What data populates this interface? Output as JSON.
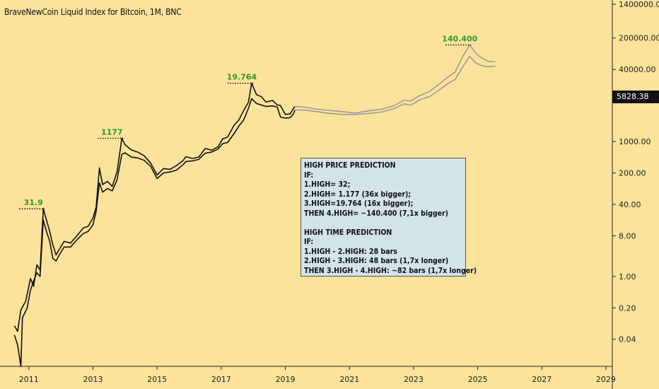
{
  "title": "BraveNewCoin Liquid Index for Bitcoin, 1M, BNC",
  "current_price_label": "5828.38",
  "note": {
    "lines1": [
      "HIGH PRICE PREDICTION",
      "IF:",
      "1.HIGH= 32;",
      "2.HIGH= 1.177 (36x bigger);",
      "3.HIGH=19.764 (16x bigger);",
      "THEN 4.HIGH= ~140.400 (7,1x bigger)"
    ],
    "lines2": [
      "HIGH TIME PREDICTION",
      "IF:",
      "1.HIGH - 2.HIGH: 28 bars",
      "2.HIGH - 3.HIGH: 48 bars (1,7x longer)",
      "THEN 3.HIGH - 4.HIGH: ~82 bars (1,7x longer)"
    ]
  },
  "colors": {
    "background": "#fce39b",
    "price_line": "#111111",
    "projection_line": "#9a9a9a",
    "peak_label": "#2e9a2e",
    "note_bg": "#d3e3ea"
  },
  "chart_data": {
    "type": "line",
    "title": "BraveNewCoin Liquid Index for Bitcoin, 1M, BNC",
    "y_scale": "log",
    "ylim": [
      0.01,
      1400000
    ],
    "xlim": [
      2010.1,
      2029.2
    ],
    "x_ticks": [
      "2011",
      "2013",
      "2015",
      "2017",
      "2019",
      "2021",
      "2023",
      "2025",
      "2027",
      "2029"
    ],
    "y_ticks": [
      "1400000.00",
      "200000.00",
      "40000.00",
      "5828.38",
      "1000.00",
      "200.00",
      "40.00",
      "8.00",
      "1.00",
      "0.20",
      "0.04"
    ],
    "peak_labels": [
      {
        "text": "31.9",
        "x": 2011.45,
        "y": 31.9
      },
      {
        "text": "1177",
        "x": 2013.9,
        "y": 1177
      },
      {
        "text": "19.764",
        "x": 2017.95,
        "y": 19764
      },
      {
        "text": "140.400",
        "x": 2024.75,
        "y": 140400
      }
    ],
    "series": [
      {
        "role": "historical-high",
        "points": [
          [
            2010.55,
            0.08
          ],
          [
            2010.65,
            0.06
          ],
          [
            2010.75,
            0.18
          ],
          [
            2010.9,
            0.28
          ],
          [
            2011.05,
            0.9
          ],
          [
            2011.15,
            0.6
          ],
          [
            2011.25,
            1.8
          ],
          [
            2011.35,
            1.4
          ],
          [
            2011.45,
            31.9
          ],
          [
            2011.55,
            18
          ],
          [
            2011.65,
            10
          ],
          [
            2011.75,
            5
          ],
          [
            2011.85,
            3
          ],
          [
            2011.95,
            4
          ],
          [
            2012.1,
            6
          ],
          [
            2012.3,
            5.5
          ],
          [
            2012.5,
            8
          ],
          [
            2012.7,
            12
          ],
          [
            2012.85,
            13
          ],
          [
            2013.0,
            20
          ],
          [
            2013.1,
            35
          ],
          [
            2013.2,
            260
          ],
          [
            2013.3,
            110
          ],
          [
            2013.45,
            130
          ],
          [
            2013.6,
            100
          ],
          [
            2013.75,
            210
          ],
          [
            2013.9,
            1177
          ],
          [
            2014.0,
            850
          ],
          [
            2014.2,
            650
          ],
          [
            2014.4,
            580
          ],
          [
            2014.6,
            480
          ],
          [
            2014.8,
            330
          ],
          [
            2015.0,
            180
          ],
          [
            2015.2,
            250
          ],
          [
            2015.4,
            240
          ],
          [
            2015.6,
            290
          ],
          [
            2015.8,
            370
          ],
          [
            2015.9,
            460
          ],
          [
            2016.1,
            420
          ],
          [
            2016.3,
            450
          ],
          [
            2016.5,
            700
          ],
          [
            2016.7,
            640
          ],
          [
            2016.9,
            760
          ],
          [
            2017.05,
            1150
          ],
          [
            2017.2,
            1250
          ],
          [
            2017.4,
            2300
          ],
          [
            2017.55,
            3000
          ],
          [
            2017.7,
            4900
          ],
          [
            2017.85,
            7500
          ],
          [
            2017.95,
            19764
          ],
          [
            2018.1,
            11000
          ],
          [
            2018.25,
            9900
          ],
          [
            2018.4,
            7500
          ],
          [
            2018.6,
            8200
          ],
          [
            2018.75,
            6500
          ],
          [
            2018.85,
            6300
          ],
          [
            2019.0,
            4000
          ],
          [
            2019.15,
            4100
          ],
          [
            2019.25,
            5400
          ],
          [
            2019.3,
            6000
          ]
        ]
      },
      {
        "role": "historical-low",
        "points": [
          [
            2010.55,
            0.05
          ],
          [
            2010.65,
            0.03
          ],
          [
            2010.75,
            0.01
          ],
          [
            2010.8,
            0.12
          ],
          [
            2010.95,
            0.2
          ],
          [
            2011.05,
            0.5
          ],
          [
            2011.15,
            0.8
          ],
          [
            2011.25,
            1.2
          ],
          [
            2011.35,
            1.0
          ],
          [
            2011.45,
            18
          ],
          [
            2011.55,
            10
          ],
          [
            2011.65,
            6
          ],
          [
            2011.75,
            2.5
          ],
          [
            2011.85,
            2.2
          ],
          [
            2011.95,
            3
          ],
          [
            2012.1,
            4.5
          ],
          [
            2012.3,
            4.5
          ],
          [
            2012.5,
            6.5
          ],
          [
            2012.7,
            9
          ],
          [
            2012.85,
            10
          ],
          [
            2013.0,
            14
          ],
          [
            2013.1,
            28
          ],
          [
            2013.2,
            120
          ],
          [
            2013.3,
            75
          ],
          [
            2013.45,
            90
          ],
          [
            2013.6,
            80
          ],
          [
            2013.75,
            140
          ],
          [
            2013.9,
            520
          ],
          [
            2014.0,
            560
          ],
          [
            2014.2,
            450
          ],
          [
            2014.4,
            430
          ],
          [
            2014.6,
            380
          ],
          [
            2014.8,
            280
          ],
          [
            2015.0,
            150
          ],
          [
            2015.2,
            200
          ],
          [
            2015.4,
            210
          ],
          [
            2015.6,
            230
          ],
          [
            2015.8,
            300
          ],
          [
            2015.9,
            360
          ],
          [
            2016.1,
            370
          ],
          [
            2016.3,
            400
          ],
          [
            2016.5,
            550
          ],
          [
            2016.7,
            580
          ],
          [
            2016.9,
            680
          ],
          [
            2017.05,
            900
          ],
          [
            2017.2,
            950
          ],
          [
            2017.4,
            1500
          ],
          [
            2017.55,
            2200
          ],
          [
            2017.7,
            3000
          ],
          [
            2017.85,
            5500
          ],
          [
            2017.95,
            9000
          ],
          [
            2018.1,
            7000
          ],
          [
            2018.25,
            6500
          ],
          [
            2018.4,
            6000
          ],
          [
            2018.6,
            6200
          ],
          [
            2018.75,
            5800
          ],
          [
            2018.85,
            3500
          ],
          [
            2019.0,
            3300
          ],
          [
            2019.15,
            3400
          ],
          [
            2019.25,
            4100
          ],
          [
            2019.3,
            5000
          ]
        ]
      },
      {
        "role": "projection-upper",
        "points": [
          [
            2019.3,
            6000
          ],
          [
            2019.6,
            5800
          ],
          [
            2020.0,
            5200
          ],
          [
            2020.4,
            4900
          ],
          [
            2020.8,
            4600
          ],
          [
            2021.2,
            4300
          ],
          [
            2021.6,
            4800
          ],
          [
            2022.0,
            5200
          ],
          [
            2022.4,
            6300
          ],
          [
            2022.7,
            8300
          ],
          [
            2022.9,
            7900
          ],
          [
            2023.2,
            10500
          ],
          [
            2023.5,
            13000
          ],
          [
            2023.8,
            19000
          ],
          [
            2024.1,
            28000
          ],
          [
            2024.3,
            35000
          ],
          [
            2024.5,
            70000
          ],
          [
            2024.75,
            140400
          ],
          [
            2024.95,
            90000
          ],
          [
            2025.15,
            70000
          ],
          [
            2025.35,
            60000
          ],
          [
            2025.55,
            60000
          ]
        ]
      },
      {
        "role": "projection-lower",
        "points": [
          [
            2019.3,
            5000
          ],
          [
            2019.6,
            5000
          ],
          [
            2020.0,
            4600
          ],
          [
            2020.4,
            4200
          ],
          [
            2020.8,
            4000
          ],
          [
            2021.2,
            4000
          ],
          [
            2021.6,
            4200
          ],
          [
            2022.0,
            4500
          ],
          [
            2022.4,
            5400
          ],
          [
            2022.7,
            6900
          ],
          [
            2022.9,
            6400
          ],
          [
            2023.2,
            8500
          ],
          [
            2023.5,
            10000
          ],
          [
            2023.8,
            14000
          ],
          [
            2024.1,
            20000
          ],
          [
            2024.3,
            24000
          ],
          [
            2024.5,
            42000
          ],
          [
            2024.75,
            78000
          ],
          [
            2024.95,
            55000
          ],
          [
            2025.15,
            48000
          ],
          [
            2025.35,
            46000
          ],
          [
            2025.55,
            47000
          ]
        ]
      }
    ]
  }
}
